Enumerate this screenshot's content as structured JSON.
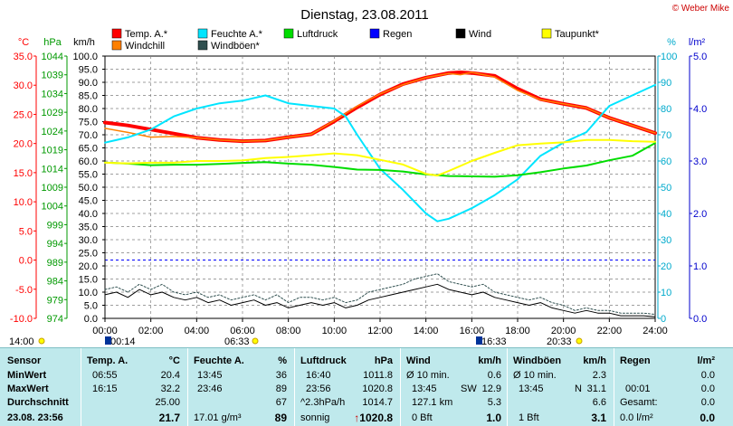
{
  "header": {
    "title": "Dienstag, 23.08.2011",
    "copyright": "© Weber Mike"
  },
  "colors": {
    "temp": "#ff0000",
    "windchill": "#ff8000",
    "humidity": "#00e5ff",
    "gust": "#2f4f4f",
    "pressure": "#00dd00",
    "rain": "#0000ff",
    "wind": "#000000",
    "dewpoint": "#ffff00"
  },
  "legend": [
    {
      "key": "temp",
      "label": "Temp. A.*"
    },
    {
      "key": "humidity",
      "label": "Feuchte A.*"
    },
    {
      "key": "pressure",
      "label": "Luftdruck"
    },
    {
      "key": "rain",
      "label": "Regen"
    },
    {
      "key": "wind",
      "label": "Wind"
    },
    {
      "key": "dewpoint",
      "label": "Taupunkt*"
    },
    {
      "key": "windchill",
      "label": "Windchill"
    },
    {
      "key": "gust",
      "label": "Windböen*"
    }
  ],
  "chart_data": {
    "type": "line",
    "axes": {
      "temp": {
        "unit": "°C",
        "ticks": [
          "35.0",
          "30.0",
          "25.0",
          "20.0",
          "15.0",
          "10.0",
          "5.0",
          "0.0",
          "-5.0",
          "-10.0"
        ],
        "range": [
          -10,
          35
        ]
      },
      "pressure": {
        "unit": "hPa",
        "ticks": [
          "1044",
          "1039",
          "1034",
          "1029",
          "1024",
          "1019",
          "1014",
          "1009",
          "1004",
          "999",
          "994",
          "989",
          "984",
          "979",
          "974"
        ],
        "range": [
          974,
          1044
        ]
      },
      "wind": {
        "unit": "km/h",
        "ticks": [
          "100.0",
          "95.0",
          "90.0",
          "85.0",
          "80.0",
          "75.0",
          "70.0",
          "65.0",
          "60.0",
          "55.0",
          "50.0",
          "45.0",
          "40.0",
          "35.0",
          "30.0",
          "25.0",
          "20.0",
          "15.0",
          "10.0",
          "5.0",
          "0.0"
        ],
        "range": [
          0,
          100
        ]
      },
      "humidity": {
        "unit": "%",
        "ticks": [
          "100",
          "90",
          "80",
          "70",
          "60",
          "50",
          "40",
          "30",
          "20",
          "10",
          "0"
        ],
        "range": [
          0,
          100
        ]
      },
      "rain": {
        "unit": "l/m²",
        "ticks": [
          "5.0",
          "4.0",
          "3.0",
          "2.0",
          "1.0",
          "0.0"
        ],
        "range": [
          0,
          5
        ]
      }
    },
    "x_ticks": [
      "00:00",
      "02:00",
      "04:00",
      "06:00",
      "08:00",
      "10:00",
      "12:00",
      "14:00",
      "16:00",
      "18:00",
      "20:00",
      "22:00",
      "24:00"
    ],
    "x_range": [
      0,
      24
    ],
    "markers": [
      {
        "label": "14:00",
        "time": "14:00",
        "row": "below"
      },
      {
        "label": "00:14",
        "time": "00:14",
        "row": "below"
      },
      {
        "label": "06:33",
        "time": "06:33",
        "row": "below"
      },
      {
        "label": "16:33",
        "time": "16:33",
        "row": "below"
      },
      {
        "label": "20:33",
        "time": "20:33",
        "row": "below"
      }
    ],
    "series": [
      {
        "key": "temp",
        "axis": "temp",
        "width": 4,
        "x": [
          0,
          1,
          2,
          3,
          4,
          5,
          6,
          7,
          8,
          9,
          10,
          11,
          12,
          13,
          14,
          15,
          15.5,
          16,
          17,
          18,
          19,
          20,
          21,
          22,
          23,
          24
        ],
        "y": [
          23.6,
          23.1,
          22.4,
          21.7,
          21.0,
          20.6,
          20.4,
          20.5,
          21.1,
          21.6,
          23.8,
          26.2,
          28.4,
          30.2,
          31.3,
          32.1,
          32.2,
          32.1,
          31.6,
          29.4,
          27.6,
          26.8,
          26.1,
          24.4,
          23.1,
          21.8
        ]
      },
      {
        "key": "windchill",
        "axis": "temp",
        "width": 1.5,
        "x": [
          0,
          1,
          2,
          3,
          4,
          5,
          6,
          7,
          8,
          9,
          10,
          11,
          12,
          13,
          14,
          15,
          15.5,
          16,
          17,
          18,
          19,
          20,
          21,
          22,
          23,
          24
        ],
        "y": [
          22.6,
          21.9,
          21.1,
          21.2,
          21.0,
          20.6,
          20.4,
          20.5,
          21.1,
          21.6,
          23.9,
          26.4,
          28.5,
          30.1,
          31.3,
          32.0,
          31.8,
          32.2,
          31.4,
          29.1,
          27.5,
          26.8,
          26.1,
          24.4,
          23.1,
          21.8
        ]
      },
      {
        "key": "humidity",
        "axis": "humidity",
        "width": 2,
        "x": [
          0,
          1,
          2,
          3,
          4,
          5,
          6,
          7,
          8,
          9,
          10,
          10.5,
          11,
          12,
          13,
          14,
          14.5,
          15,
          16,
          17,
          18,
          19,
          20,
          21,
          22,
          23,
          24
        ],
        "y": [
          67,
          69,
          72,
          77,
          80,
          82,
          83,
          85,
          82,
          81,
          80,
          77,
          70,
          57,
          49,
          40,
          37,
          38,
          42,
          47,
          53,
          62,
          67,
          71,
          81,
          85,
          89
        ]
      },
      {
        "key": "pressure",
        "axis": "pressure",
        "width": 2,
        "x": [
          0,
          1,
          2,
          3,
          4,
          5,
          6,
          7,
          8,
          9,
          10,
          11,
          12,
          13,
          14,
          15,
          16,
          17,
          18,
          19,
          20,
          21,
          22,
          23,
          24
        ],
        "y": [
          1015.6,
          1015.3,
          1014.9,
          1015.0,
          1015.0,
          1015.2,
          1015.5,
          1015.7,
          1015.3,
          1015.0,
          1014.4,
          1013.7,
          1013.6,
          1013.2,
          1012.4,
          1012.0,
          1011.9,
          1011.8,
          1012.2,
          1013.0,
          1014.0,
          1014.8,
          1016.2,
          1017.4,
          1020.8
        ]
      },
      {
        "key": "dewpoint",
        "axis": "temp",
        "width": 2,
        "x": [
          0,
          1,
          2,
          3,
          4,
          5,
          6,
          7,
          8,
          9,
          10,
          11,
          12,
          13,
          14,
          14.5,
          15,
          16,
          17,
          18,
          19,
          20,
          21,
          22,
          23,
          24
        ],
        "y": [
          16.7,
          16.6,
          16.7,
          16.7,
          17.0,
          17.0,
          17.1,
          17.5,
          17.7,
          18.0,
          18.3,
          18.0,
          17.2,
          16.4,
          14.8,
          14.5,
          15.3,
          17.0,
          18.4,
          19.7,
          20.0,
          20.2,
          20.6,
          20.6,
          20.4,
          20.3
        ]
      },
      {
        "key": "wind",
        "axis": "wind",
        "width": 1,
        "x": [
          0,
          0.5,
          1,
          1.5,
          2,
          2.5,
          3,
          3.5,
          4,
          4.5,
          5,
          5.5,
          6,
          6.5,
          7,
          7.5,
          8,
          8.5,
          9,
          9.5,
          10,
          10.5,
          11,
          11.5,
          12,
          12.5,
          13,
          13.5,
          14,
          14.5,
          15,
          15.5,
          16,
          16.5,
          17,
          17.5,
          18,
          18.5,
          19,
          19.5,
          20,
          20.5,
          21,
          21.5,
          22,
          22.5,
          23,
          23.5,
          24
        ],
        "y": [
          9,
          10,
          8,
          11,
          9,
          10,
          8,
          7,
          8,
          6,
          7,
          5,
          6,
          7,
          5,
          6,
          4,
          5,
          6,
          5,
          6,
          4,
          5,
          7,
          8,
          9,
          10,
          11,
          12,
          13,
          11,
          10,
          9,
          10,
          8,
          7,
          6,
          5,
          6,
          4,
          3,
          2,
          3,
          2,
          2,
          1,
          1,
          1,
          0.6
        ]
      },
      {
        "key": "gust",
        "axis": "wind",
        "width": 1,
        "dash": "2,2",
        "x": [
          0,
          0.5,
          1,
          1.5,
          2,
          2.5,
          3,
          3.5,
          4,
          4.5,
          5,
          5.5,
          6,
          6.5,
          7,
          7.5,
          8,
          8.5,
          9,
          9.5,
          10,
          10.5,
          11,
          11.5,
          12,
          12.5,
          13,
          13.5,
          14,
          14.5,
          15,
          15.5,
          16,
          16.5,
          17,
          17.5,
          18,
          18.5,
          19,
          19.5,
          20,
          20.5,
          21,
          21.5,
          22,
          22.5,
          23,
          23.5,
          24
        ],
        "y": [
          11,
          12,
          10,
          13,
          11,
          13,
          10,
          9,
          10,
          8,
          9,
          7,
          8,
          9,
          7,
          9,
          6,
          8,
          8,
          7,
          8,
          6,
          7,
          10,
          11,
          12,
          13,
          15,
          16,
          17,
          14,
          13,
          12,
          13,
          10,
          9,
          8,
          7,
          8,
          6,
          5,
          3,
          4,
          3,
          3,
          2,
          2,
          2,
          1.5
        ]
      }
    ],
    "reference_line": {
      "axis": "temp",
      "value": 0
    }
  },
  "table": {
    "columns": [
      {
        "title": "Sensor",
        "unit": ""
      },
      {
        "title": "Temp. A.",
        "unit": "°C"
      },
      {
        "title": "Feuchte A.",
        "unit": "%"
      },
      {
        "title": "Luftdruck",
        "unit": "hPa"
      },
      {
        "title": "Wind",
        "unit": "km/h"
      },
      {
        "title": "Windböen",
        "unit": "km/h"
      },
      {
        "title": "Regen",
        "unit": "l/m²"
      }
    ],
    "sensor_labels": [
      "MinWert",
      "MaxWert",
      "Durchschnitt",
      "23.08. 23:56"
    ],
    "temp": [
      [
        "06:55",
        "20.4"
      ],
      [
        "16:15",
        "32.2"
      ],
      [
        "",
        "25.00"
      ],
      [
        "",
        "21.7"
      ]
    ],
    "humidity": [
      [
        "13:45",
        "36"
      ],
      [
        "23:46",
        "89"
      ],
      [
        "",
        "67"
      ],
      [
        "17.01 g/m³",
        "89"
      ]
    ],
    "pressure": [
      [
        "16:40",
        "1011.8"
      ],
      [
        "23:56",
        "1020.8"
      ],
      [
        "^2.3hPa/h",
        "1014.7"
      ],
      [
        "sonnig",
        "1020.8"
      ]
    ],
    "wind": [
      [
        "Ø 10 min.",
        "",
        "0.6"
      ],
      [
        "13:45",
        "SW",
        "12.9"
      ],
      [
        "127.1 km",
        "",
        "5.3"
      ],
      [
        "0 Bft",
        "",
        "1.0"
      ]
    ],
    "gust": [
      [
        "Ø 10 min.",
        "",
        "2.3"
      ],
      [
        "13:45",
        "N",
        "31.1"
      ],
      [
        "",
        "",
        "6.6"
      ],
      [
        "1 Bft",
        "",
        "3.1"
      ]
    ],
    "rain": [
      [
        "",
        "",
        "0.0"
      ],
      [
        "00:01",
        "",
        "0.0"
      ],
      [
        "Gesamt:",
        "",
        "0.0"
      ],
      [
        "0.0 l/m²",
        "",
        "0.0"
      ]
    ]
  }
}
